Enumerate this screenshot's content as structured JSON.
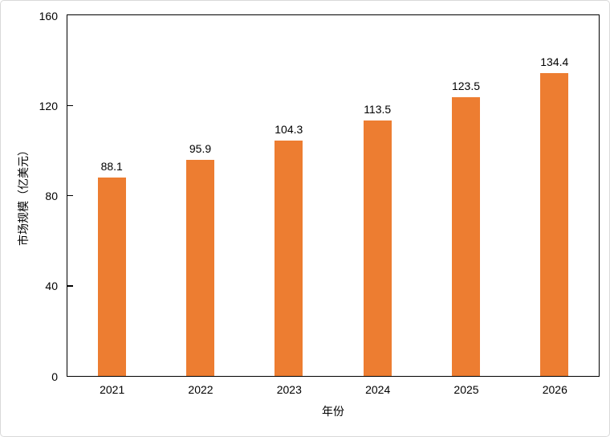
{
  "chart_data": {
    "type": "bar",
    "title": "",
    "categories": [
      "2021",
      "2022",
      "2023",
      "2024",
      "2025",
      "2026"
    ],
    "values": [
      88.1,
      95.9,
      104.3,
      113.5,
      123.5,
      134.4
    ],
    "value_labels": [
      "88.1",
      "95.9",
      "104.3",
      "113.5",
      "123.5",
      "134.4"
    ],
    "xlabel": "年份",
    "ylabel": "市场规模（亿美元）",
    "ylim": [
      0,
      160
    ],
    "yticks": [
      0,
      40,
      80,
      120,
      160
    ],
    "grid": "off",
    "legend": "none",
    "bar_color": "#ED7D31",
    "axis_color": "#000000",
    "text_color": "#000000",
    "figure_border_color": "#d9d9d9"
  }
}
